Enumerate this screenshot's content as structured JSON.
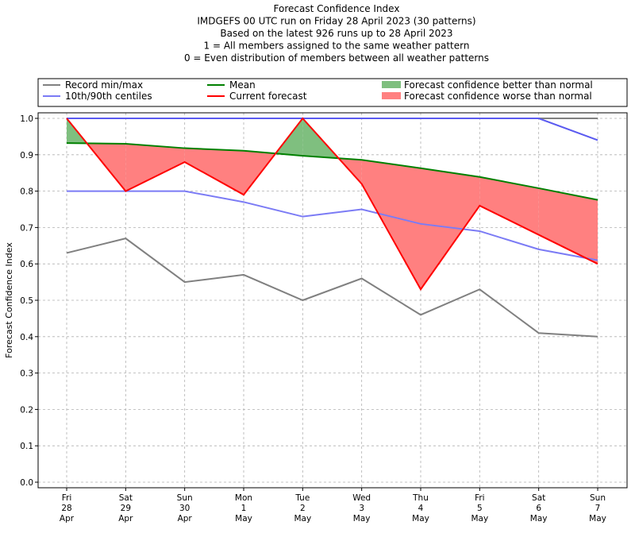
{
  "chart_data": {
    "type": "line",
    "title_lines": [
      "Forecast Confidence Index",
      "IMDGEFS 00 UTC run on Friday 28 April 2023 (30 patterns)",
      "Based on the latest 926 runs up to 28 April 2023",
      "1 = All members assigned to the same weather pattern",
      "0 = Even distribution of members between all weather patterns"
    ],
    "ylabel": "Forecast Confidence Index",
    "xlabel": "",
    "ylim": [
      0,
      1.0
    ],
    "yticks": [
      "0.0",
      "0.1",
      "0.2",
      "0.3",
      "0.4",
      "0.5",
      "0.6",
      "0.7",
      "0.8",
      "0.9",
      "1.0"
    ],
    "ytick_values": [
      0,
      0.1,
      0.2,
      0.3,
      0.4,
      0.5,
      0.6,
      0.7,
      0.8,
      0.9,
      1.0
    ],
    "grid": true,
    "legend_placement": "top",
    "categories": [
      [
        "Fri",
        "28",
        "Apr"
      ],
      [
        "Sat",
        "29",
        "Apr"
      ],
      [
        "Sun",
        "30",
        "Apr"
      ],
      [
        "Mon",
        "1",
        "May"
      ],
      [
        "Tue",
        "2",
        "May"
      ],
      [
        "Wed",
        "3",
        "May"
      ],
      [
        "Thu",
        "4",
        "May"
      ],
      [
        "Fri",
        "5",
        "May"
      ],
      [
        "Sat",
        "6",
        "May"
      ],
      [
        "Sun",
        "7",
        "May"
      ]
    ],
    "series": [
      {
        "name": "Record min/max",
        "kind": "record_min",
        "color": "#808080",
        "values": [
          0.63,
          0.67,
          0.55,
          0.57,
          0.5,
          0.56,
          0.46,
          0.53,
          0.41,
          0.4
        ]
      },
      {
        "name": "Record min/max",
        "kind": "record_max",
        "color": "#808080",
        "values": [
          1.0,
          1.0,
          1.0,
          1.0,
          1.0,
          1.0,
          1.0,
          1.0,
          1.0,
          1.0
        ]
      },
      {
        "name": "10th/90th centiles",
        "kind": "centile_10",
        "color": "#7b7bf5",
        "values": [
          0.8,
          0.8,
          0.8,
          0.77,
          0.73,
          0.75,
          0.71,
          0.69,
          0.64,
          0.61
        ]
      },
      {
        "name": "10th/90th centiles",
        "kind": "centile_90",
        "color": "#5a5af0",
        "values": [
          1.0,
          1.0,
          1.0,
          1.0,
          1.0,
          1.0,
          1.0,
          1.0,
          1.0,
          0.94
        ]
      },
      {
        "name": "Mean",
        "kind": "mean",
        "color": "#008000",
        "values": [
          0.932,
          0.93,
          0.918,
          0.911,
          0.897,
          0.886,
          0.863,
          0.839,
          0.808,
          0.776
        ]
      },
      {
        "name": "Current forecast",
        "kind": "current",
        "color": "#ff0000",
        "values": [
          1.0,
          0.8,
          0.88,
          0.79,
          1.0,
          0.82,
          0.53,
          0.76,
          0.68,
          0.6
        ]
      }
    ],
    "fills": [
      {
        "name": "Forecast confidence better than normal",
        "color": "#7fbf7f"
      },
      {
        "name": "Forecast confidence worse than normal",
        "color": "#ff8080"
      }
    ],
    "legend": [
      {
        "label": "Record min/max",
        "type": "line",
        "color": "#808080"
      },
      {
        "label": "10th/90th centiles",
        "type": "line",
        "color": "#7b7bf5"
      },
      {
        "label": "Mean",
        "type": "line",
        "color": "#008000"
      },
      {
        "label": "Current forecast",
        "type": "line",
        "color": "#ff0000"
      },
      {
        "label": "Forecast confidence better than normal",
        "type": "patch",
        "color": "#7fbf7f"
      },
      {
        "label": "Forecast confidence worse than normal",
        "type": "patch",
        "color": "#ff8080"
      }
    ]
  }
}
